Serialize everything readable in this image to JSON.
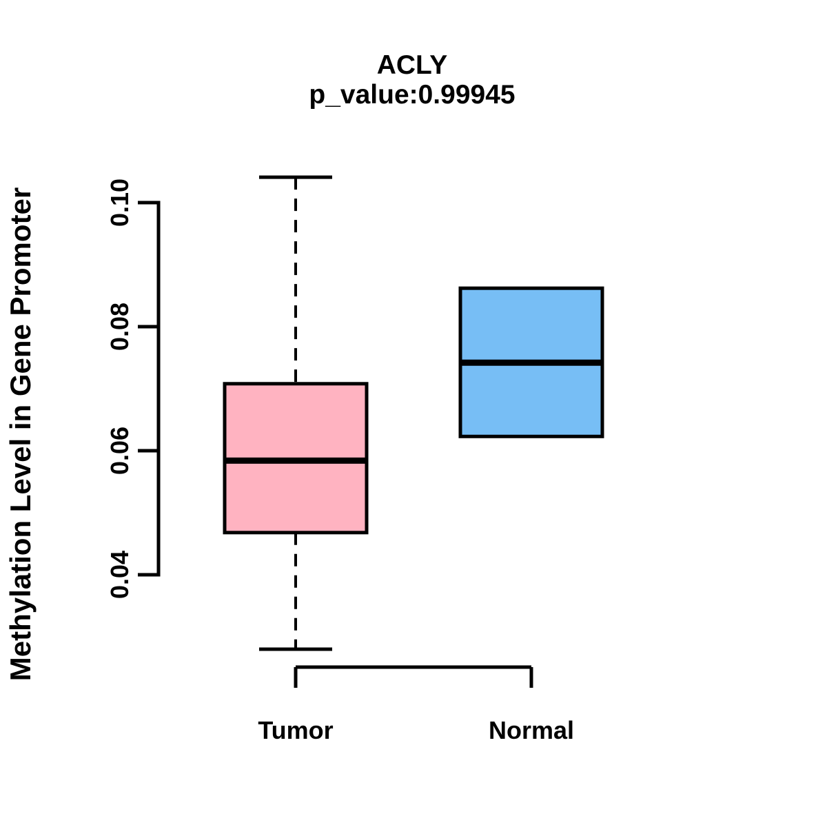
{
  "figure": {
    "title": "ACLY",
    "subtitle": "p_value:0.99945",
    "ylabel": "Methylation Level in Gene Promoter"
  },
  "chart_data": {
    "type": "boxplot",
    "title": "ACLY",
    "subtitle": "p_value:0.99945",
    "ylabel": "Methylation Level in Gene Promoter",
    "xlabel": "",
    "categories": [
      "Tumor",
      "Normal"
    ],
    "ytick_labels": [
      "0.04",
      "0.06",
      "0.08",
      "0.10"
    ],
    "ytick_values": [
      0.04,
      0.06,
      0.08,
      0.1
    ],
    "ylim": [
      0.025,
      0.107
    ],
    "grid": false,
    "legend": false,
    "box_colors": {
      "tumor": "#FFB3C1",
      "normal": "#77BEF5"
    },
    "line_color": "#000000",
    "groups": [
      {
        "label": "Tumor",
        "color": "#FFB3C1",
        "stats": {
          "whisker_low": 0.028,
          "q1": 0.0468,
          "median": 0.0584,
          "q3": 0.0708,
          "whisker_high": 0.1041
        }
      },
      {
        "label": "Normal",
        "color": "#77BEF5",
        "stats": {
          "whisker_low": 0.0623,
          "q1": 0.0623,
          "median": 0.0742,
          "q3": 0.0862,
          "whisker_high": 0.0862
        }
      }
    ]
  }
}
